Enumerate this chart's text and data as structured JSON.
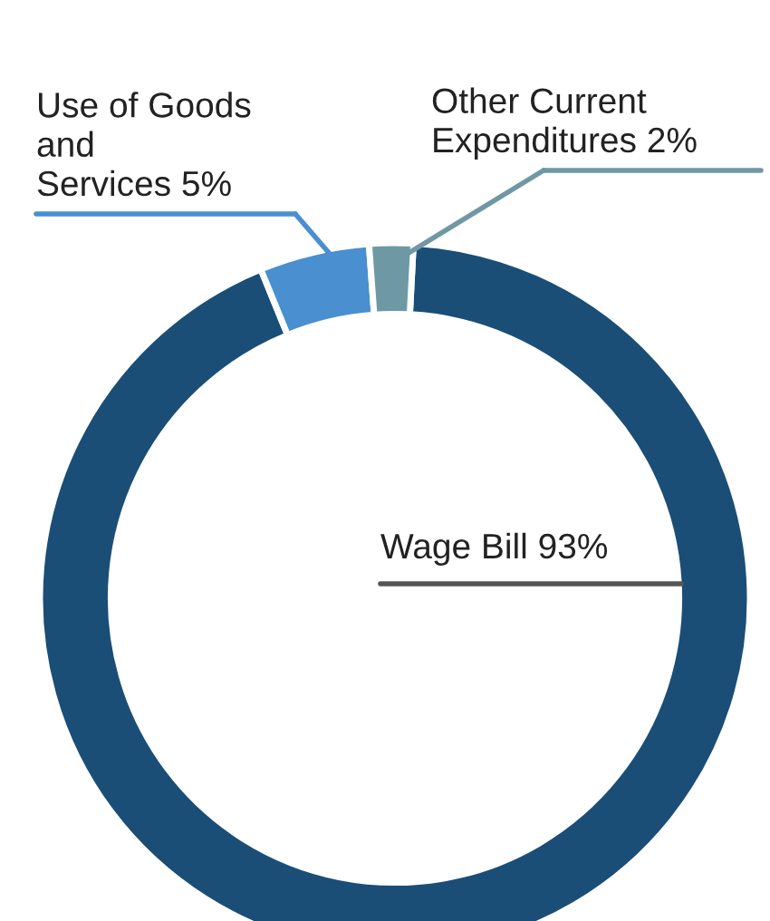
{
  "chart_data": {
    "type": "donut",
    "categories": [
      "Wage Bill 93%",
      "Use of Goods\nand\nServices 5%",
      "Other Current\nExpenditures 2%"
    ],
    "values": [
      93,
      5,
      2
    ],
    "colors": [
      "#1a4e76",
      "#4a8fd0",
      "#6f98a5"
    ],
    "legend": false
  }
}
